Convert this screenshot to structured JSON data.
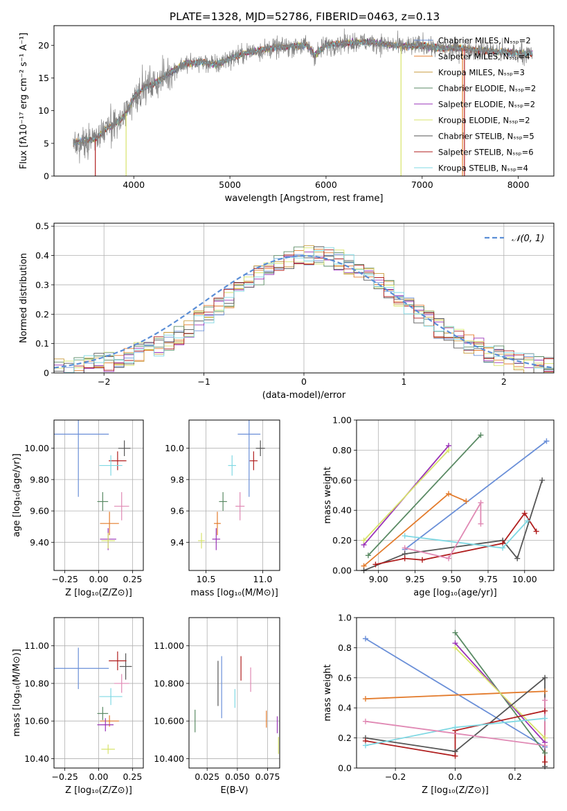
{
  "figure_title": "PLATE=1328, MJD=52786, FIBERID=0463, z=0.13",
  "series_colors": [
    "#6a8fd8",
    "#e37b2c",
    "#c99b3c",
    "#5a8a64",
    "#9a33b8",
    "#d7e36a",
    "#555555",
    "#b01e1e",
    "#7fd8e3"
  ],
  "highlight_colors": {
    "pink": "#e089b4"
  },
  "chart_data": [
    {
      "id": "spectrum",
      "type": "line",
      "xlabel": "wavelength [Angstrom, rest frame]",
      "ylabel": "Flux [fλ10⁻¹⁷ erg cm⁻² s⁻¹ A⁻¹]",
      "xlim": [
        3170,
        8370
      ],
      "ylim": [
        0,
        23
      ],
      "xticks": [
        4000,
        5000,
        6000,
        7000,
        8000
      ],
      "yticks": [
        0,
        5,
        10,
        15,
        20
      ],
      "legend_position": "upper-right",
      "series": [
        {
          "name": "Chabrier MILES, N_SSP=2",
          "color": "#6a8fd8"
        },
        {
          "name": "Salpeter MILES, N_SSP=4",
          "color": "#e37b2c"
        },
        {
          "name": "Kroupa MILES, N_SSP=3",
          "color": "#c99b3c"
        },
        {
          "name": "Chabrier ELODIE, N_SSP=2",
          "color": "#5a8a64"
        },
        {
          "name": "Salpeter ELODIE, N_SSP=2",
          "color": "#9a33b8"
        },
        {
          "name": "Kroupa ELODIE, N_SSP=2",
          "color": "#d7e36a"
        },
        {
          "name": "Chabrier STELIB, N_SSP=5",
          "color": "#555555"
        },
        {
          "name": "Salpeter STELIB, N_SSP=6",
          "color": "#b01e1e"
        },
        {
          "name": "Kroupa STELIB, N_SSP=4",
          "color": "#7fd8e3"
        }
      ],
      "continuum": [
        [
          3370,
          5.0
        ],
        [
          3500,
          5.5
        ],
        [
          3600,
          5.7
        ],
        [
          3700,
          7.0
        ],
        [
          3800,
          8.0
        ],
        [
          3900,
          9.0
        ],
        [
          4000,
          12.0
        ],
        [
          4100,
          13.5
        ],
        [
          4200,
          14.0
        ],
        [
          4300,
          15.0
        ],
        [
          4400,
          16.0
        ],
        [
          4500,
          17.0
        ],
        [
          4700,
          17.5
        ],
        [
          4860,
          17.0
        ],
        [
          5000,
          18.0
        ],
        [
          5200,
          19.0
        ],
        [
          5400,
          19.5
        ],
        [
          5600,
          19.8
        ],
        [
          5800,
          20.0
        ],
        [
          5880,
          18.5
        ],
        [
          6000,
          20.0
        ],
        [
          6300,
          20.5
        ],
        [
          6560,
          20.3
        ],
        [
          6800,
          19.8
        ],
        [
          7000,
          20.0
        ],
        [
          7200,
          19.5
        ],
        [
          7400,
          19.6
        ],
        [
          7600,
          19.2
        ],
        [
          7800,
          19.0
        ],
        [
          8000,
          18.8
        ],
        [
          8150,
          18.7
        ]
      ],
      "dropouts": [
        [
          3600,
          "#b01e1e"
        ],
        [
          3920,
          "#d7e36a"
        ],
        [
          6780,
          "#d7e36a"
        ],
        [
          7420,
          "#e37b2c"
        ],
        [
          7440,
          "#b01e1e"
        ]
      ]
    },
    {
      "id": "residuals",
      "type": "histogram",
      "xlabel": "(data-model)/error",
      "ylabel": "Normed distribution",
      "xlim": [
        -2.5,
        2.5
      ],
      "ylim": [
        0,
        0.51
      ],
      "xticks": [
        -2,
        -1,
        0,
        1,
        2
      ],
      "yticks": [
        0.0,
        0.1,
        0.2,
        0.3,
        0.4,
        0.5
      ],
      "legend": "𝒩(0, 1)",
      "legend_position": "upper-right",
      "grid": true
    },
    {
      "id": "age_vs_Z",
      "type": "errorbar",
      "xlabel": "Z [log₁₀(Z/Z⊙)]",
      "ylabel": "age  [log₁₀(age/yr)]",
      "xlim": [
        -0.33,
        0.33
      ],
      "ylim": [
        9.22,
        10.18
      ],
      "xticks": [
        -0.25,
        0.0,
        0.25
      ],
      "yticks": [
        9.4,
        9.6,
        9.8,
        10.0
      ],
      "grid": true,
      "points": [
        {
          "c": "#6a8fd8",
          "x": -0.15,
          "xe": 0.45,
          "y": 10.09,
          "ye": 0.8
        },
        {
          "c": "#e37b2c",
          "x": 0.08,
          "xe": 0.14,
          "y": 9.52,
          "ye": 0.15
        },
        {
          "c": "#5a8a64",
          "x": 0.03,
          "xe": 0.08,
          "y": 9.66,
          "ye": 0.12
        },
        {
          "c": "#9a33b8",
          "x": 0.07,
          "xe": 0.12,
          "y": 9.42,
          "ye": 0.14
        },
        {
          "c": "#d7e36a",
          "x": 0.07,
          "xe": 0.1,
          "y": 9.41,
          "ye": 0.1
        },
        {
          "c": "#555555",
          "x": 0.19,
          "xe": 0.09,
          "y": 10.0,
          "ye": 0.1
        },
        {
          "c": "#b01e1e",
          "x": 0.14,
          "xe": 0.13,
          "y": 9.92,
          "ye": 0.12
        },
        {
          "c": "#7fd8e3",
          "x": 0.09,
          "xe": 0.17,
          "y": 9.89,
          "ye": 0.13
        },
        {
          "c": "#e089b4",
          "x": 0.17,
          "xe": 0.11,
          "y": 9.63,
          "ye": 0.18
        }
      ]
    },
    {
      "id": "age_vs_mass",
      "type": "errorbar",
      "xlabel": "mass [log₁₀(M/M⊙)]",
      "ylabel": "",
      "xlim": [
        10.35,
        11.15
      ],
      "ylim": [
        9.22,
        10.18
      ],
      "xticks": [
        10.5,
        11.0
      ],
      "yticks": [
        9.4,
        9.6,
        9.8,
        10.0
      ],
      "grid": true,
      "points": [
        {
          "c": "#6a8fd8",
          "x": 10.88,
          "xe": 0.2,
          "y": 10.09,
          "ye": 0.8
        },
        {
          "c": "#e37b2c",
          "x": 10.6,
          "xe": 0.06,
          "y": 9.52,
          "ye": 0.15
        },
        {
          "c": "#5a8a64",
          "x": 10.65,
          "xe": 0.07,
          "y": 9.66,
          "ye": 0.12
        },
        {
          "c": "#9a33b8",
          "x": 10.59,
          "xe": 0.07,
          "y": 9.42,
          "ye": 0.14
        },
        {
          "c": "#d7e36a",
          "x": 10.46,
          "xe": 0.06,
          "y": 9.41,
          "ye": 0.1
        },
        {
          "c": "#555555",
          "x": 10.98,
          "xe": 0.08,
          "y": 10.0,
          "ye": 0.1
        },
        {
          "c": "#b01e1e",
          "x": 10.92,
          "xe": 0.07,
          "y": 9.92,
          "ye": 0.12
        },
        {
          "c": "#7fd8e3",
          "x": 10.73,
          "xe": 0.07,
          "y": 9.89,
          "ye": 0.13
        },
        {
          "c": "#e089b4",
          "x": 10.8,
          "xe": 0.08,
          "y": 9.63,
          "ye": 0.18
        }
      ]
    },
    {
      "id": "weight_vs_age",
      "type": "line",
      "xlabel": "age  [log₁₀(age/yr)]",
      "ylabel": "mass weight",
      "xlim": [
        8.85,
        10.2
      ],
      "ylim": [
        0,
        1
      ],
      "xticks": [
        9.0,
        9.25,
        9.5,
        9.75,
        10.0
      ],
      "yticks": [
        0.0,
        0.2,
        0.4,
        0.6,
        0.8,
        1.0
      ],
      "grid": true,
      "series": [
        {
          "c": "#6a8fd8",
          "pts": [
            [
              9.18,
              0.14
            ],
            [
              10.15,
              0.86
            ]
          ]
        },
        {
          "c": "#e37b2c",
          "pts": [
            [
              8.9,
              0.03
            ],
            [
              9.48,
              0.51
            ],
            [
              9.6,
              0.46
            ]
          ]
        },
        {
          "c": "#5a8a64",
          "pts": [
            [
              8.93,
              0.1
            ],
            [
              9.7,
              0.9
            ]
          ]
        },
        {
          "c": "#9a33b8",
          "pts": [
            [
              8.9,
              0.17
            ],
            [
              9.48,
              0.83
            ]
          ]
        },
        {
          "c": "#d7e36a",
          "pts": [
            [
              8.9,
              0.2
            ],
            [
              9.48,
              0.8
            ]
          ]
        },
        {
          "c": "#555555",
          "pts": [
            [
              8.9,
              0.0
            ],
            [
              9.18,
              0.11
            ],
            [
              9.85,
              0.2
            ],
            [
              9.95,
              0.08
            ],
            [
              10.12,
              0.6
            ]
          ]
        },
        {
          "c": "#b01e1e",
          "pts": [
            [
              8.98,
              0.04
            ],
            [
              9.18,
              0.08
            ],
            [
              9.3,
              0.07
            ],
            [
              9.85,
              0.18
            ],
            [
              10.0,
              0.38
            ],
            [
              10.08,
              0.26
            ]
          ]
        },
        {
          "c": "#7fd8e3",
          "pts": [
            [
              9.18,
              0.23
            ],
            [
              9.85,
              0.15
            ],
            [
              10.02,
              0.33
            ]
          ]
        },
        {
          "c": "#e089b4",
          "pts": [
            [
              9.18,
              0.15
            ],
            [
              9.48,
              0.08
            ],
            [
              9.7,
              0.45
            ],
            [
              9.7,
              0.31
            ]
          ]
        }
      ]
    },
    {
      "id": "mass_vs_Z",
      "type": "errorbar",
      "xlabel": "Z [log₁₀(Z/Z⊙)]",
      "ylabel": "mass [log₁₀(M/M⊙)]",
      "xlim": [
        -0.33,
        0.33
      ],
      "ylim": [
        10.35,
        11.15
      ],
      "xticks": [
        -0.25,
        0.0,
        0.25
      ],
      "yticks": [
        10.4,
        10.6,
        10.8,
        11.0
      ],
      "grid": true,
      "points": [
        {
          "c": "#6a8fd8",
          "x": -0.15,
          "xe": 0.45,
          "y": 10.88,
          "ye": 0.22
        },
        {
          "c": "#e37b2c",
          "x": 0.08,
          "xe": 0.14,
          "y": 10.6,
          "ye": 0.06
        },
        {
          "c": "#5a8a64",
          "x": 0.03,
          "xe": 0.08,
          "y": 10.64,
          "ye": 0.07
        },
        {
          "c": "#9a33b8",
          "x": 0.05,
          "xe": 0.12,
          "y": 10.58,
          "ye": 0.07
        },
        {
          "c": "#d7e36a",
          "x": 0.07,
          "xe": 0.1,
          "y": 10.45,
          "ye": 0.05
        },
        {
          "c": "#555555",
          "x": 0.2,
          "xe": 0.09,
          "y": 10.89,
          "ye": 0.14
        },
        {
          "c": "#b01e1e",
          "x": 0.14,
          "xe": 0.13,
          "y": 10.92,
          "ye": 0.1
        },
        {
          "c": "#7fd8e3",
          "x": 0.09,
          "xe": 0.17,
          "y": 10.73,
          "ye": 0.09
        },
        {
          "c": "#e089b4",
          "x": 0.17,
          "xe": 0.11,
          "y": 10.8,
          "ye": 0.1
        }
      ]
    },
    {
      "id": "mass_vs_EBV",
      "type": "errorbar",
      "xlabel": "E(B-V)",
      "ylabel": "",
      "xlim": [
        0.01,
        0.085
      ],
      "ylim": [
        10.35,
        11.15
      ],
      "xticks": [
        0.025,
        0.05,
        0.075
      ],
      "yticks": [
        10.4,
        10.6,
        10.8,
        11.0
      ],
      "grid": true,
      "points": [
        {
          "c": "#5a8a64",
          "x": 0.015,
          "y": 10.6,
          "ye": 0.12
        },
        {
          "c": "#555555",
          "x": 0.034,
          "y": 10.8,
          "ye": 0.24
        },
        {
          "c": "#6a8fd8",
          "x": 0.037,
          "y": 10.78,
          "ye": 0.33
        },
        {
          "c": "#7fd8e3",
          "x": 0.048,
          "y": 10.72,
          "ye": 0.1
        },
        {
          "c": "#b01e1e",
          "x": 0.053,
          "y": 10.88,
          "ye": 0.13
        },
        {
          "c": "#e089b4",
          "x": 0.061,
          "y": 10.82,
          "ye": 0.13
        },
        {
          "c": "#e37b2c",
          "x": 0.074,
          "y": 10.61,
          "ye": 0.09
        },
        {
          "c": "#9a33b8",
          "x": 0.083,
          "y": 10.58,
          "ye": 0.09
        },
        {
          "c": "#d7e36a",
          "x": 0.084,
          "y": 10.47,
          "ye": 0.09
        }
      ]
    },
    {
      "id": "weight_vs_Z",
      "type": "line",
      "xlabel": "Z [log₁₀(Z/Z⊙)]",
      "ylabel": "mass weight",
      "xlim": [
        -0.33,
        0.33
      ],
      "ylim": [
        0,
        1
      ],
      "xticks": [
        -0.2,
        0.0,
        0.2
      ],
      "yticks": [
        0.0,
        0.2,
        0.4,
        0.6,
        0.8,
        1.0
      ],
      "grid": true,
      "series": [
        {
          "c": "#6a8fd8",
          "pts": [
            [
              -0.3,
              0.86
            ],
            [
              0.3,
              0.14
            ]
          ]
        },
        {
          "c": "#e37b2c",
          "pts": [
            [
              -0.3,
              0.46
            ],
            [
              0.3,
              0.51
            ]
          ]
        },
        {
          "c": "#5a8a64",
          "pts": [
            [
              0.0,
              0.9
            ],
            [
              0.3,
              0.1
            ]
          ]
        },
        {
          "c": "#9a33b8",
          "pts": [
            [
              0.0,
              0.83
            ],
            [
              0.3,
              0.17
            ]
          ]
        },
        {
          "c": "#d7e36a",
          "pts": [
            [
              0.0,
              0.8
            ],
            [
              0.3,
              0.2
            ]
          ]
        },
        {
          "c": "#555555",
          "pts": [
            [
              -0.3,
              0.2
            ],
            [
              0.0,
              0.11
            ],
            [
              0.3,
              0.6
            ],
            [
              0.3,
              0.01
            ]
          ]
        },
        {
          "c": "#b01e1e",
          "pts": [
            [
              -0.3,
              0.18
            ],
            [
              0.0,
              0.08
            ],
            [
              0.0,
              0.25
            ],
            [
              0.3,
              0.38
            ],
            [
              0.3,
              0.04
            ]
          ]
        },
        {
          "c": "#7fd8e3",
          "pts": [
            [
              -0.3,
              0.15
            ],
            [
              0.0,
              0.27
            ],
            [
              0.3,
              0.33
            ]
          ]
        },
        {
          "c": "#e089b4",
          "pts": [
            [
              -0.3,
              0.31
            ],
            [
              0.3,
              0.15
            ],
            [
              0.3,
              0.45
            ]
          ]
        }
      ]
    }
  ]
}
